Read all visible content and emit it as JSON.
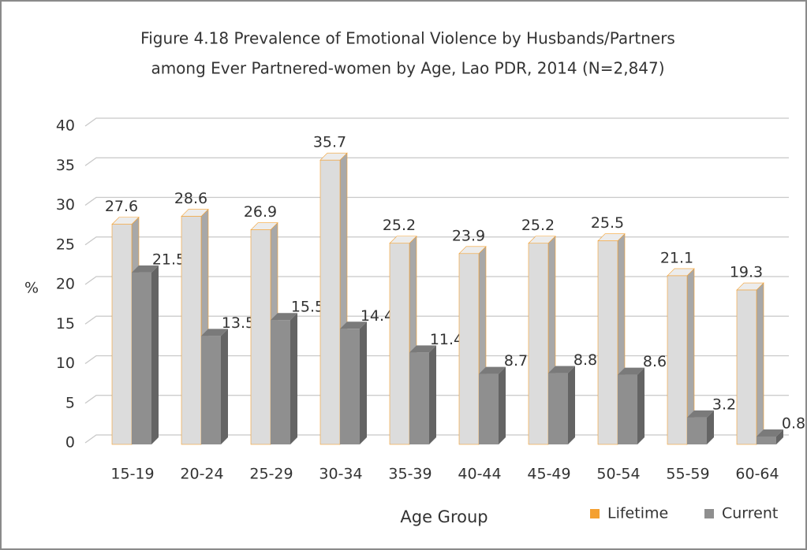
{
  "chart_data": {
    "type": "bar3d",
    "title": [
      "Figure 4.18  Prevalence of Emotional Violence by Husbands/Partners",
      "among Ever Partnered-women by Age, Lao PDR, 2014 (N=2,847)"
    ],
    "x_label": "Age Group",
    "y_label": "%",
    "categories": [
      "15-19",
      "20-24",
      "25-29",
      "30-34",
      "35-39",
      "40-44",
      "45-49",
      "50-54",
      "55-59",
      "60-64"
    ],
    "series": [
      {
        "name": "Lifetime",
        "color": "#f4a030",
        "values": [
          27.6,
          28.6,
          26.9,
          35.7,
          25.2,
          23.9,
          25.2,
          25.5,
          21.1,
          19.3
        ]
      },
      {
        "name": "Current",
        "color": "#8f8f8f",
        "values": [
          21.5,
          13.5,
          15.5,
          14.4,
          11.4,
          8.7,
          8.8,
          8.6,
          3.2,
          0.8
        ]
      }
    ],
    "ylim": [
      0,
      40
    ],
    "yticks": [
      0,
      5,
      10,
      15,
      20,
      25,
      30,
      35,
      40
    ],
    "grid": true,
    "legend": "bottom-right"
  }
}
